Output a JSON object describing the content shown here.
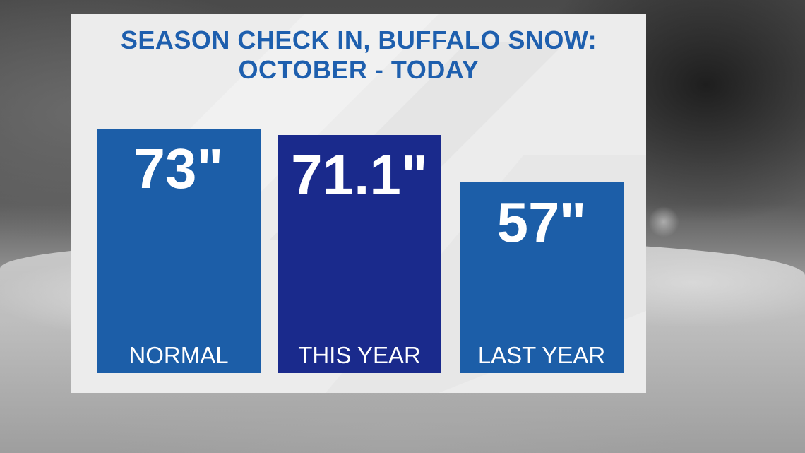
{
  "chart_data": {
    "type": "bar",
    "title_line1": "SEASON CHECK IN, BUFFALO SNOW:",
    "title_line2": "OCTOBER - TODAY",
    "categories": [
      "NORMAL",
      "THIS YEAR",
      "LAST YEAR"
    ],
    "values": [
      73,
      71.1,
      57
    ],
    "value_labels": [
      "73\"",
      "71.1\"",
      "57\""
    ],
    "unit": "inches",
    "colors": [
      "#1c5ea8",
      "#1a2a8c",
      "#1c5ea8"
    ],
    "label_color": "#ffffff",
    "title_color": "#1e5fae",
    "xlabel": "",
    "ylabel": "",
    "grid": false,
    "legend": "none"
  }
}
